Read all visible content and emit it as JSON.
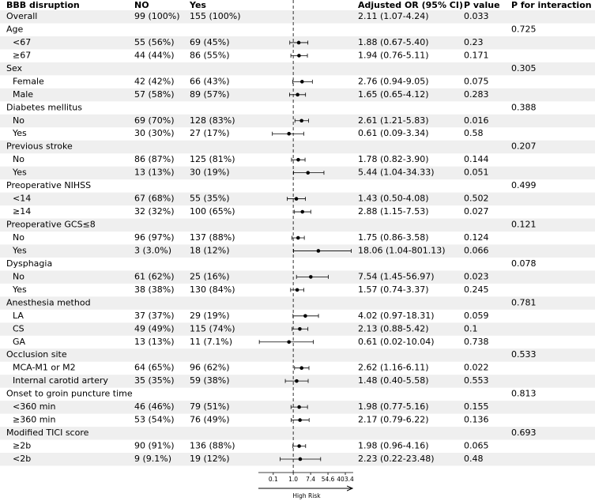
{
  "chart_data": {
    "type": "forest",
    "header": {
      "label": "BBB disruption",
      "no": "NO",
      "yes": "Yes",
      "or": "Adjusted OR (95% CI)",
      "p": "P value",
      "p_interaction": "P for interaction"
    },
    "overall": {
      "label": "Overall",
      "no": "99 (100%)",
      "yes": "155 (100%)",
      "or_label": "2.11 (1.07-4.24)",
      "p": "0.033"
    },
    "groups": [
      {
        "label": "Age",
        "p_interaction": "0.725",
        "rows": [
          {
            "label": "<67",
            "no": "55 (56%)",
            "yes": "69 (45%)",
            "or": 1.88,
            "lo": 0.67,
            "hi": 5.4,
            "or_label": "1.88 (0.67-5.40)",
            "p": "0.23"
          },
          {
            "label": "≥67",
            "no": "44 (44%)",
            "yes": "86 (55%)",
            "or": 1.94,
            "lo": 0.76,
            "hi": 5.11,
            "or_label": "1.94 (0.76-5.11)",
            "p": "0.171"
          }
        ]
      },
      {
        "label": "Sex",
        "p_interaction": "0.305",
        "rows": [
          {
            "label": "Female",
            "no": "42 (42%)",
            "yes": "66 (43%)",
            "or": 2.76,
            "lo": 0.94,
            "hi": 9.05,
            "or_label": "2.76 (0.94-9.05)",
            "p": "0.075"
          },
          {
            "label": "Male",
            "no": "57 (58%)",
            "yes": "89 (57%)",
            "or": 1.65,
            "lo": 0.65,
            "hi": 4.12,
            "or_label": "1.65 (0.65-4.12)",
            "p": "0.283"
          }
        ]
      },
      {
        "label": "Diabetes mellitus",
        "p_interaction": "0.388",
        "rows": [
          {
            "label": "No",
            "no": "69 (70%)",
            "yes": "128 (83%)",
            "or": 2.61,
            "lo": 1.21,
            "hi": 5.83,
            "or_label": "2.61 (1.21-5.83)",
            "p": "0.016"
          },
          {
            "label": "Yes",
            "no": "30 (30%)",
            "yes": "27 (17%)",
            "or": 0.61,
            "lo": 0.09,
            "hi": 3.34,
            "or_label": "0.61 (0.09-3.34)",
            "p": "0.58"
          }
        ]
      },
      {
        "label": "Previous stroke",
        "p_interaction": "0.207",
        "rows": [
          {
            "label": "No",
            "no": "86 (87%)",
            "yes": "125 (81%)",
            "or": 1.78,
            "lo": 0.82,
            "hi": 3.9,
            "or_label": "1.78 (0.82-3.90)",
            "p": "0.144"
          },
          {
            "label": "Yes",
            "no": "13 (13%)",
            "yes": "30 (19%)",
            "or": 5.44,
            "lo": 1.04,
            "hi": 34.33,
            "or_label": "5.44 (1.04-34.33)",
            "p": "0.051"
          }
        ]
      },
      {
        "label": "Preoperative NIHSS",
        "p_interaction": "0.499",
        "rows": [
          {
            "label": "<14",
            "no": "67 (68%)",
            "yes": "55 (35%)",
            "or": 1.43,
            "lo": 0.5,
            "hi": 4.08,
            "or_label": "1.43 (0.50-4.08)",
            "p": "0.502"
          },
          {
            "label": "≥14",
            "no": "32 (32%)",
            "yes": "100 (65%)",
            "or": 2.88,
            "lo": 1.15,
            "hi": 7.53,
            "or_label": "2.88 (1.15-7.53)",
            "p": "0.027"
          }
        ]
      },
      {
        "label": "Preoperative GCS≤8",
        "p_interaction": "0.121",
        "rows": [
          {
            "label": "No",
            "no": "96 (97%)",
            "yes": "137 (88%)",
            "or": 1.75,
            "lo": 0.86,
            "hi": 3.58,
            "or_label": "1.75 (0.86-3.58)",
            "p": "0.124"
          },
          {
            "label": "Yes",
            "no": "3 (3.0%)",
            "yes": "18 (12%)",
            "or": 18.06,
            "lo": 1.04,
            "hi": 801.13,
            "or_label": "18.06 (1.04-801.13)",
            "p": "0.066"
          }
        ]
      },
      {
        "label": "Dysphagia",
        "p_interaction": "0.078",
        "rows": [
          {
            "label": "No",
            "no": "61 (62%)",
            "yes": "25 (16%)",
            "or": 7.54,
            "lo": 1.45,
            "hi": 56.97,
            "or_label": "7.54 (1.45-56.97)",
            "p": "0.023"
          },
          {
            "label": "Yes",
            "no": "38 (38%)",
            "yes": "130 (84%)",
            "or": 1.57,
            "lo": 0.74,
            "hi": 3.37,
            "or_label": "1.57 (0.74-3.37)",
            "p": "0.245"
          }
        ]
      },
      {
        "label": "Anesthesia method",
        "p_interaction": "0.781",
        "rows": [
          {
            "label": "LA",
            "no": "37 (37%)",
            "yes": "29 (19%)",
            "or": 4.02,
            "lo": 0.97,
            "hi": 18.31,
            "or_label": "4.02 (0.97-18.31)",
            "p": "0.059"
          },
          {
            "label": "CS",
            "no": "49 (49%)",
            "yes": "115 (74%)",
            "or": 2.13,
            "lo": 0.88,
            "hi": 5.42,
            "or_label": "2.13 (0.88-5.42)",
            "p": "0.1"
          },
          {
            "label": "GA",
            "no": "13 (13%)",
            "yes": "11 (7.1%)",
            "or": 0.61,
            "lo": 0.02,
            "hi": 10.04,
            "or_label": "0.61 (0.02-10.04)",
            "p": "0.738"
          }
        ]
      },
      {
        "label": "Occlusion site",
        "p_interaction": "0.533",
        "rows": [
          {
            "label": "MCA-M1 or M2",
            "no": "64 (65%)",
            "yes": "96 (62%)",
            "or": 2.62,
            "lo": 1.16,
            "hi": 6.11,
            "or_label": "2.62 (1.16-6.11)",
            "p": "0.022"
          },
          {
            "label": "Internal carotid artery",
            "no": "35 (35%)",
            "yes": "59 (38%)",
            "or": 1.48,
            "lo": 0.4,
            "hi": 5.58,
            "or_label": "1.48 (0.40-5.58)",
            "p": "0.553"
          }
        ]
      },
      {
        "label": "Onset to groin puncture time",
        "p_interaction": "0.813",
        "rows": [
          {
            "label": "<360 min",
            "no": "46 (46%)",
            "yes": "79 (51%)",
            "or": 1.98,
            "lo": 0.77,
            "hi": 5.16,
            "or_label": "1.98 (0.77-5.16)",
            "p": "0.155"
          },
          {
            "label": "≥360 min",
            "no": "53 (54%)",
            "yes": "76 (49%)",
            "or": 2.17,
            "lo": 0.79,
            "hi": 6.22,
            "or_label": "2.17 (0.79-6.22)",
            "p": "0.136"
          }
        ]
      },
      {
        "label": "Modified TICI score",
        "p_interaction": "0.693",
        "rows": [
          {
            "label": "≥2b",
            "no": "90 (91%)",
            "yes": "136 (88%)",
            "or": 1.98,
            "lo": 0.96,
            "hi": 4.16,
            "or_label": "1.98 (0.96-4.16)",
            "p": "0.065"
          },
          {
            "label": "<2b",
            "no": "9 (9.1%)",
            "yes": "19 (12%)",
            "or": 2.23,
            "lo": 0.22,
            "hi": 23.48,
            "or_label": "2.23 (0.22-23.48)",
            "p": "0.48"
          }
        ]
      }
    ],
    "xlog": true,
    "xlim": [
      0.018,
      1000
    ],
    "reference": {
      "value": 1,
      "label": "1.0"
    },
    "xticks": [
      0.1,
      {
        "value": 1,
        "label": "1.0"
      },
      7.4,
      54.6,
      403.4
    ],
    "xlabel": "High Risk"
  }
}
